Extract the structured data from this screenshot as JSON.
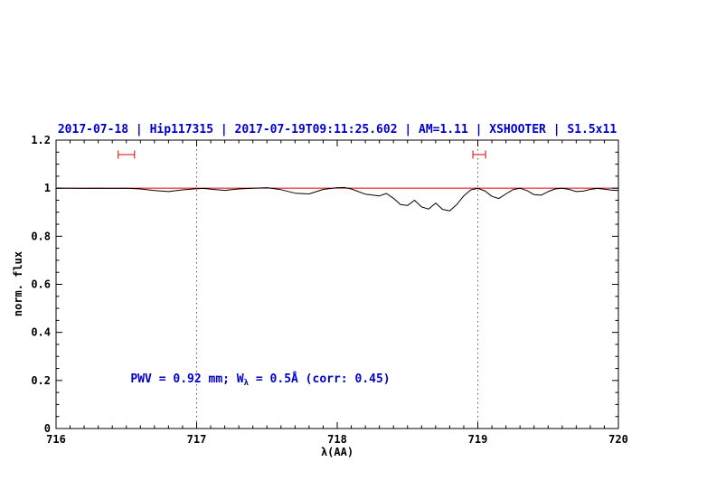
{
  "chart_data": {
    "type": "line",
    "title": "2017-07-18 | Hip117315 | 2017-07-19T09:11:25.602 | AM=1.11 | XSHOOTER | S1.5x11",
    "xlabel": "λ(AA)",
    "ylabel": "norm. flux",
    "xlim": [
      716,
      720
    ],
    "ylim": [
      0,
      1.2
    ],
    "x_ticks": [
      716,
      717,
      718,
      719,
      720
    ],
    "x_tick_labels": [
      "716",
      "717",
      "718",
      "719",
      "720"
    ],
    "y_ticks": [
      0,
      0.2,
      0.4,
      0.6,
      0.8,
      1,
      1.2
    ],
    "y_tick_labels": [
      "0",
      "0.2",
      "0.4",
      "0.6",
      "0.8",
      "1",
      "1.2"
    ],
    "x_minor_step": 0.1,
    "y_minor_step": 0.05,
    "grid": false,
    "legend": "none",
    "vlines_dotted": [
      717,
      719
    ],
    "continuum_level": 1.0,
    "range_markers": [
      {
        "x_center": 716.5,
        "x_half_width": 0.058,
        "y": 1.14
      },
      {
        "x_center": 719.01,
        "x_half_width": 0.045,
        "y": 1.14
      }
    ],
    "annotation": {
      "prefix": "PWV = 0.92 mm; W",
      "sub": "λ",
      "suffix": " = 0.5Å (corr: 0.45)",
      "x": 716.53,
      "y": 0.185
    },
    "colors": {
      "title_blue": "#0000cd",
      "annotation_blue": "#0000cd",
      "continuum_red": "#dd0000",
      "marker_red": "#dd0000",
      "spectrum_black": "#000000",
      "dotted_line": "#555555"
    },
    "series": [
      {
        "name": "spectrum",
        "x": [
          716.0,
          716.1,
          716.2,
          716.3,
          716.4,
          716.5,
          716.6,
          716.7,
          716.8,
          716.9,
          717.0,
          717.05,
          717.1,
          717.2,
          717.3,
          717.4,
          717.5,
          717.6,
          717.7,
          717.8,
          717.9,
          718.0,
          718.05,
          718.1,
          718.2,
          718.3,
          718.35,
          718.4,
          718.45,
          718.5,
          718.55,
          718.6,
          718.65,
          718.7,
          718.75,
          718.8,
          718.85,
          718.9,
          718.95,
          719.0,
          719.05,
          719.1,
          719.15,
          719.2,
          719.25,
          719.3,
          719.35,
          719.4,
          719.45,
          719.5,
          719.55,
          719.6,
          719.65,
          719.7,
          719.75,
          719.8,
          719.85,
          719.9,
          719.95,
          720.0
        ],
        "y": [
          1.0,
          1.0,
          0.999,
          1.0,
          0.999,
          1.0,
          0.997,
          0.99,
          0.986,
          0.993,
          0.998,
          0.999,
          0.996,
          0.991,
          0.997,
          1.0,
          1.002,
          0.994,
          0.979,
          0.976,
          0.995,
          1.002,
          1.003,
          0.997,
          0.975,
          0.968,
          0.978,
          0.958,
          0.932,
          0.928,
          0.95,
          0.922,
          0.913,
          0.938,
          0.912,
          0.906,
          0.932,
          0.968,
          0.993,
          0.999,
          0.989,
          0.966,
          0.957,
          0.976,
          0.994,
          1.0,
          0.99,
          0.973,
          0.971,
          0.986,
          0.997,
          1.0,
          0.995,
          0.986,
          0.988,
          0.995,
          0.999,
          0.996,
          0.992,
          0.99
        ]
      }
    ]
  }
}
